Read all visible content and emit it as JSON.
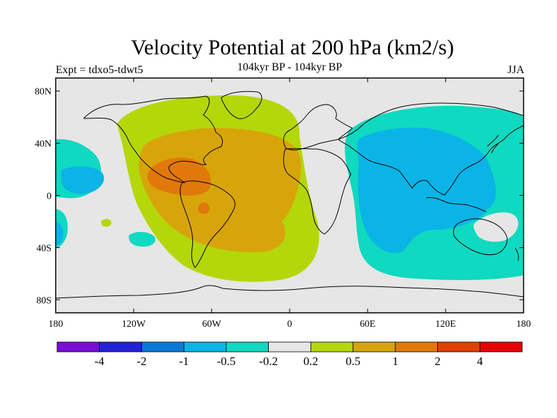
{
  "header": {
    "title": "Velocity Potential at 200 hPa (km2/s)",
    "left_label": "Expt = tdxo5-tdwt5",
    "center_label": "104kyr BP - 104kyr BP",
    "right_label": "JJA"
  },
  "map": {
    "projection": "cylindrical-equidistant",
    "lon_range": [
      -180,
      180
    ],
    "lat_range": [
      -90,
      90
    ],
    "lon_ticks": [
      "180",
      "120W",
      "60W",
      "0",
      "60E",
      "120E",
      "180"
    ],
    "lat_ticks": [
      "80N",
      "40N",
      "0",
      "40S",
      "80S"
    ],
    "background_color": "#e6e6e6",
    "coastline_color": "#000000"
  },
  "colorbar": {
    "colors": [
      "#7a0ed9",
      "#2323d6",
      "#0a78d7",
      "#0ab4e6",
      "#0fd9c0",
      "#e6e6e6",
      "#b4d70a",
      "#d7a50a",
      "#e1780a",
      "#e14100",
      "#e60000"
    ],
    "labels": [
      "-4",
      "-2",
      "-1",
      "-0.5",
      "-0.2",
      "0.2",
      "0.5",
      "1",
      "2",
      "4"
    ]
  },
  "fields": {
    "divergent_upper_colors": [
      "#b4d70a",
      "#d7a50a",
      "#e1780a"
    ],
    "convergent_upper_colors": [
      "#0fd9c0",
      "#0ab4e6"
    ]
  }
}
